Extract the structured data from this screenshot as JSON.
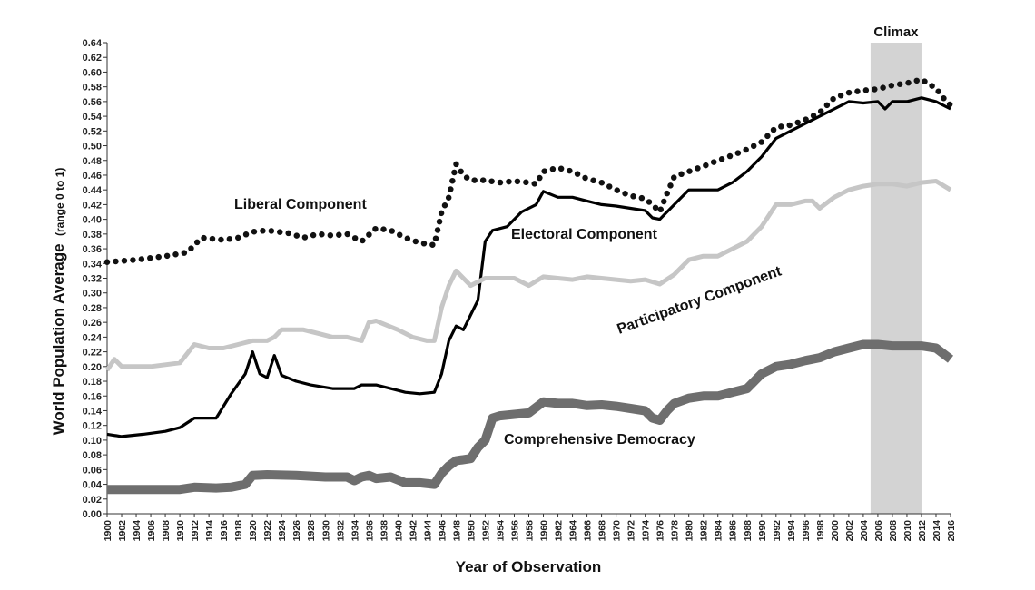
{
  "chart_data": {
    "type": "line",
    "title": "",
    "xlabel": "Year of Observation",
    "ylabel": "World Population Average",
    "ylabel_sub": "(range 0 to 1)",
    "xlim": [
      1900,
      2016
    ],
    "ylim": [
      0,
      0.64
    ],
    "yticks": [
      "0.00",
      "0.02",
      "0.04",
      "0.06",
      "0.08",
      "0.10",
      "0.12",
      "0.14",
      "0.16",
      "0.18",
      "0.20",
      "0.22",
      "0.24",
      "0.26",
      "0.28",
      "0.30",
      "0.32",
      "0.34",
      "0.36",
      "0.38",
      "0.40",
      "0.42",
      "0.44",
      "0.46",
      "0.48",
      "0.50",
      "0.52",
      "0.54",
      "0.56",
      "0.58",
      "0.60",
      "0.62",
      "0.64"
    ],
    "xticks": [
      "1900",
      "1902",
      "1904",
      "1906",
      "1908",
      "1910",
      "1912",
      "1914",
      "1916",
      "1918",
      "1920",
      "1922",
      "1924",
      "1926",
      "1928",
      "1930",
      "1932",
      "1934",
      "1936",
      "1938",
      "1940",
      "1942",
      "1944",
      "1946",
      "1948",
      "1950",
      "1952",
      "1954",
      "1956",
      "1958",
      "1960",
      "1962",
      "1964",
      "1966",
      "1968",
      "1970",
      "1972",
      "1974",
      "1976",
      "1978",
      "1980",
      "1982",
      "1984",
      "1986",
      "1988",
      "1990",
      "1992",
      "1994",
      "1996",
      "1998",
      "2000",
      "2002",
      "2004",
      "2006",
      "2008",
      "2010",
      "2012",
      "2014",
      "2016"
    ],
    "grid": false,
    "highlight": {
      "label": "Climax",
      "x_range": [
        2005,
        2012
      ],
      "color": "#d3d3d3"
    },
    "series": [
      {
        "name": "Liberal Component",
        "style": "dotted",
        "color": "#111111",
        "x": [
          1900,
          1904,
          1908,
          1911,
          1913,
          1916,
          1918,
          1920,
          1922,
          1925,
          1927,
          1929,
          1931,
          1933,
          1935,
          1937,
          1939,
          1941,
          1943,
          1945,
          1946,
          1947,
          1948,
          1949,
          1950,
          1952,
          1954,
          1956,
          1958,
          1959,
          1960,
          1962,
          1964,
          1966,
          1968,
          1970,
          1972,
          1974,
          1975,
          1976,
          1977,
          1978,
          1980,
          1982,
          1984,
          1986,
          1988,
          1990,
          1992,
          1994,
          1996,
          1998,
          2000,
          2002,
          2004,
          2006,
          2008,
          2010,
          2012,
          2014,
          2015,
          2016
        ],
        "values": [
          0.342,
          0.345,
          0.35,
          0.355,
          0.375,
          0.372,
          0.375,
          0.383,
          0.385,
          0.381,
          0.375,
          0.38,
          0.378,
          0.38,
          0.37,
          0.388,
          0.385,
          0.375,
          0.368,
          0.365,
          0.41,
          0.43,
          0.475,
          0.46,
          0.453,
          0.453,
          0.45,
          0.452,
          0.45,
          0.448,
          0.465,
          0.47,
          0.465,
          0.455,
          0.45,
          0.44,
          0.432,
          0.428,
          0.42,
          0.41,
          0.435,
          0.458,
          0.465,
          0.472,
          0.48,
          0.487,
          0.495,
          0.505,
          0.525,
          0.528,
          0.535,
          0.545,
          0.565,
          0.572,
          0.575,
          0.577,
          0.582,
          0.585,
          0.59,
          0.578,
          0.565,
          0.555
        ]
      },
      {
        "name": "Electoral Component",
        "style": "solid",
        "color": "#000000",
        "x": [
          1900,
          1902,
          1905,
          1908,
          1910,
          1912,
          1915,
          1917,
          1919,
          1920,
          1921,
          1922,
          1923,
          1924,
          1926,
          1928,
          1931,
          1934,
          1935,
          1937,
          1939,
          1941,
          1943,
          1945,
          1946,
          1947,
          1948,
          1949,
          1950,
          1951,
          1952,
          1953,
          1955,
          1957,
          1959,
          1960,
          1962,
          1964,
          1966,
          1968,
          1970,
          1972,
          1974,
          1975,
          1976,
          1978,
          1979,
          1980,
          1982,
          1984,
          1986,
          1988,
          1990,
          1992,
          1994,
          1996,
          1998,
          2000,
          2002,
          2004,
          2006,
          2007,
          2008,
          2010,
          2012,
          2014,
          2016
        ],
        "values": [
          0.108,
          0.105,
          0.108,
          0.112,
          0.117,
          0.13,
          0.13,
          0.162,
          0.19,
          0.22,
          0.19,
          0.185,
          0.215,
          0.188,
          0.18,
          0.175,
          0.17,
          0.17,
          0.175,
          0.175,
          0.17,
          0.165,
          0.163,
          0.165,
          0.19,
          0.235,
          0.255,
          0.25,
          0.27,
          0.29,
          0.37,
          0.385,
          0.39,
          0.41,
          0.42,
          0.438,
          0.43,
          0.43,
          0.425,
          0.42,
          0.418,
          0.415,
          0.412,
          0.402,
          0.4,
          0.42,
          0.43,
          0.44,
          0.44,
          0.44,
          0.45,
          0.465,
          0.485,
          0.51,
          0.52,
          0.53,
          0.54,
          0.55,
          0.56,
          0.558,
          0.56,
          0.55,
          0.56,
          0.56,
          0.565,
          0.56,
          0.55
        ]
      },
      {
        "name": "Participatory Component",
        "style": "solid",
        "color": "#c6c6c6",
        "x": [
          1900,
          1901,
          1902,
          1906,
          1910,
          1912,
          1914,
          1916,
          1918,
          1920,
          1922,
          1923,
          1924,
          1927,
          1929,
          1931,
          1933,
          1935,
          1936,
          1937,
          1938,
          1940,
          1942,
          1944,
          1945,
          1946,
          1947,
          1948,
          1950,
          1952,
          1956,
          1958,
          1960,
          1962,
          1964,
          1966,
          1968,
          1970,
          1972,
          1974,
          1976,
          1978,
          1980,
          1982,
          1984,
          1986,
          1988,
          1990,
          1992,
          1994,
          1996,
          1997,
          1998,
          2000,
          2002,
          2004,
          2006,
          2008,
          2010,
          2012,
          2014,
          2016
        ],
        "values": [
          0.195,
          0.21,
          0.2,
          0.2,
          0.205,
          0.23,
          0.225,
          0.225,
          0.23,
          0.235,
          0.235,
          0.24,
          0.25,
          0.25,
          0.245,
          0.24,
          0.24,
          0.235,
          0.26,
          0.262,
          0.258,
          0.25,
          0.24,
          0.235,
          0.235,
          0.28,
          0.31,
          0.33,
          0.31,
          0.32,
          0.32,
          0.31,
          0.322,
          0.32,
          0.318,
          0.322,
          0.32,
          0.318,
          0.316,
          0.318,
          0.312,
          0.325,
          0.345,
          0.35,
          0.35,
          0.36,
          0.37,
          0.39,
          0.42,
          0.42,
          0.425,
          0.425,
          0.415,
          0.43,
          0.44,
          0.445,
          0.448,
          0.448,
          0.445,
          0.45,
          0.452,
          0.44
        ]
      },
      {
        "name": "Comprehensive Democracy",
        "style": "thick",
        "color": "#6e6e6e",
        "x": [
          1900,
          1910,
          1912,
          1915,
          1917,
          1919,
          1920,
          1922,
          1926,
          1930,
          1933,
          1934,
          1935,
          1936,
          1937,
          1939,
          1941,
          1943,
          1945,
          1946,
          1947,
          1948,
          1950,
          1951,
          1952,
          1953,
          1954,
          1956,
          1958,
          1960,
          1962,
          1964,
          1966,
          1968,
          1970,
          1972,
          1974,
          1975,
          1976,
          1977,
          1978,
          1980,
          1982,
          1984,
          1986,
          1988,
          1990,
          1992,
          1994,
          1996,
          1998,
          2000,
          2002,
          2004,
          2006,
          2008,
          2010,
          2012,
          2014,
          2016
        ],
        "values": [
          0.033,
          0.033,
          0.036,
          0.035,
          0.036,
          0.04,
          0.052,
          0.053,
          0.052,
          0.05,
          0.05,
          0.045,
          0.05,
          0.052,
          0.048,
          0.05,
          0.042,
          0.042,
          0.04,
          0.055,
          0.065,
          0.072,
          0.075,
          0.09,
          0.1,
          0.13,
          0.133,
          0.135,
          0.137,
          0.152,
          0.15,
          0.15,
          0.147,
          0.148,
          0.146,
          0.143,
          0.14,
          0.13,
          0.127,
          0.14,
          0.15,
          0.157,
          0.16,
          0.16,
          0.165,
          0.17,
          0.19,
          0.2,
          0.203,
          0.208,
          0.212,
          0.22,
          0.225,
          0.23,
          0.23,
          0.228,
          0.228,
          0.228,
          0.225,
          0.21
        ]
      }
    ]
  }
}
